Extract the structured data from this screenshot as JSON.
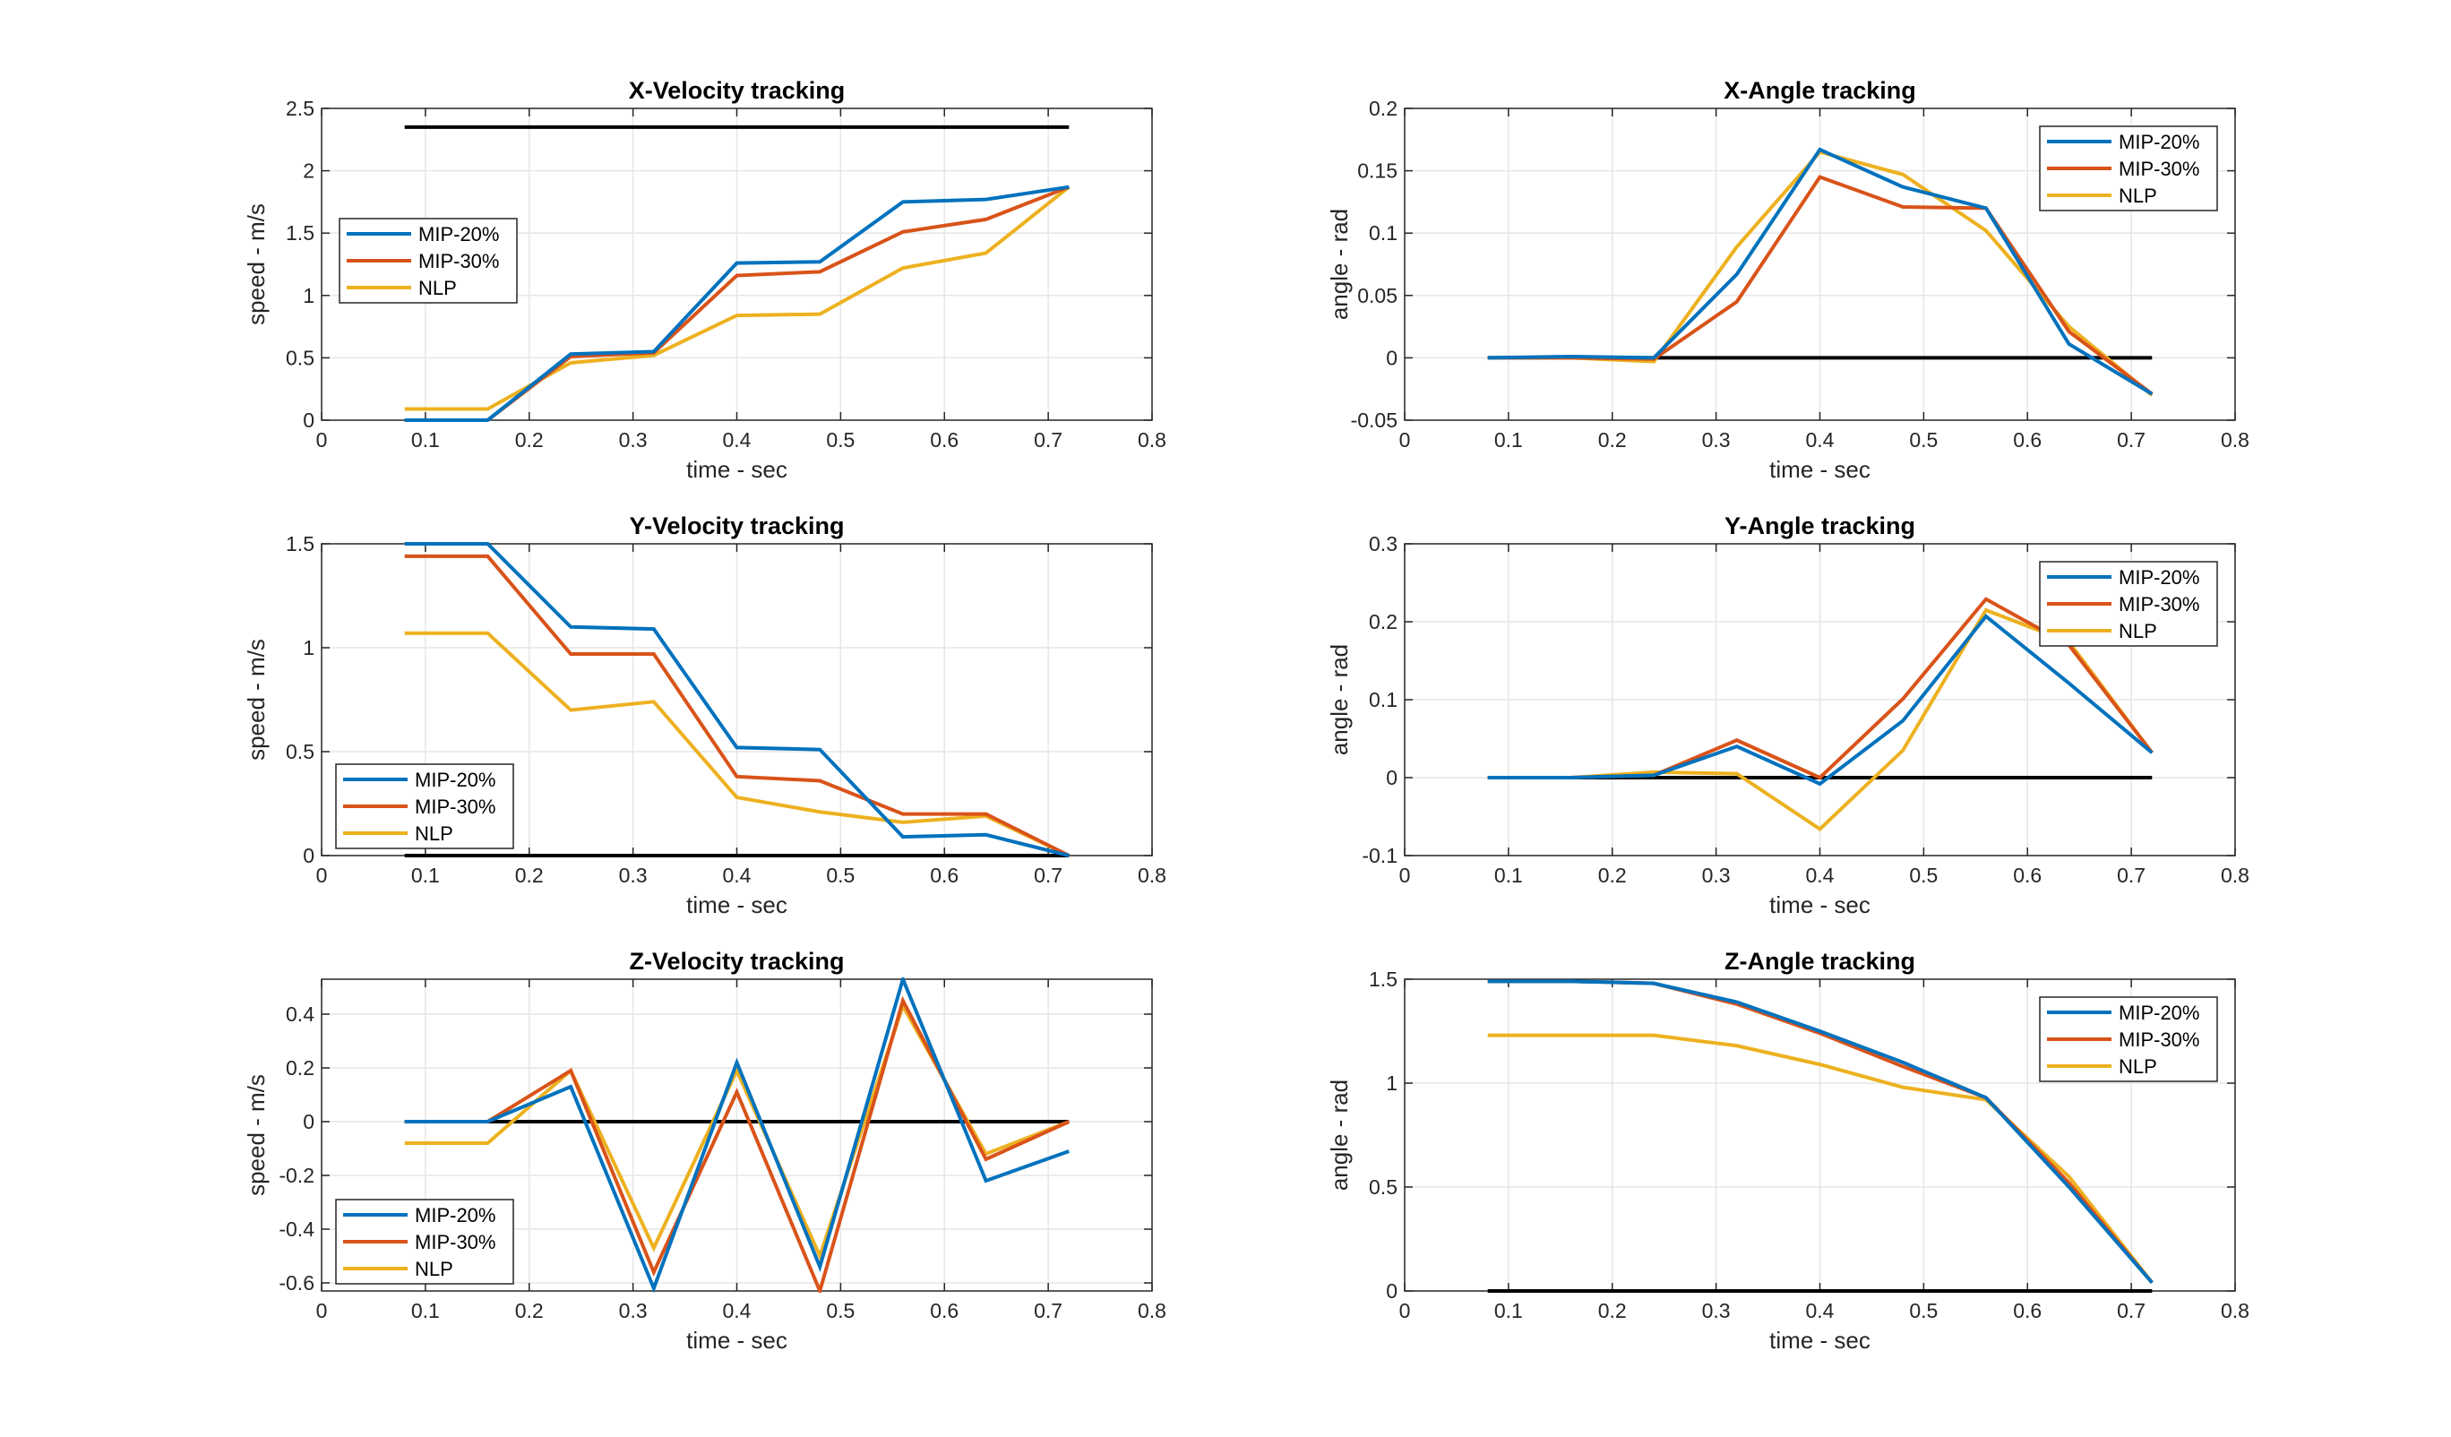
{
  "figure": {
    "colors": {
      "MIP-20%": "#0072BD",
      "MIP-30%": "#D95319",
      "NLP": "#EDB120",
      "reference": "#000000",
      "grid": "#e6e6e6",
      "axis": "#262626"
    }
  },
  "chart_data": [
    {
      "type": "line",
      "title": "X-Velocity tracking",
      "xlabel": "time - sec",
      "ylabel": "speed - m/s",
      "xlim": [
        0,
        0.8
      ],
      "ylim": [
        0,
        2.5
      ],
      "xticks": [
        "0",
        "0.1",
        "0.2",
        "0.3",
        "0.4",
        "0.5",
        "0.6",
        "0.7",
        "0.8"
      ],
      "yticks": [
        "0",
        "0.5",
        "1",
        "1.5",
        "2",
        "2.5"
      ],
      "legend_position": "middle-left",
      "x": [
        0.08,
        0.16,
        0.24,
        0.32,
        0.4,
        0.48,
        0.56,
        0.64,
        0.72
      ],
      "reference": {
        "x": [
          0.08,
          0.72
        ],
        "y": [
          2.35,
          2.35
        ]
      },
      "series": [
        {
          "name": "MIP-20%",
          "values": [
            0,
            0,
            0.53,
            0.55,
            1.26,
            1.27,
            1.75,
            1.77,
            1.87
          ]
        },
        {
          "name": "MIP-30%",
          "values": [
            0,
            0,
            0.51,
            0.54,
            1.16,
            1.19,
            1.51,
            1.61,
            1.87
          ]
        },
        {
          "name": "NLP",
          "values": [
            0.09,
            0.09,
            0.46,
            0.52,
            0.84,
            0.85,
            1.22,
            1.34,
            1.87
          ]
        }
      ]
    },
    {
      "type": "line",
      "title": "X-Angle tracking",
      "xlabel": "time - sec",
      "ylabel": "angle - rad",
      "xlim": [
        0,
        0.8
      ],
      "ylim": [
        -0.05,
        0.2
      ],
      "xticks": [
        "0",
        "0.1",
        "0.2",
        "0.3",
        "0.4",
        "0.5",
        "0.6",
        "0.7",
        "0.8"
      ],
      "yticks": [
        "-0.05",
        "0",
        "0.05",
        "0.1",
        "0.15",
        "0.2"
      ],
      "legend_position": "top-right",
      "x": [
        0.08,
        0.16,
        0.24,
        0.32,
        0.4,
        0.48,
        0.56,
        0.64,
        0.72
      ],
      "reference": {
        "x": [
          0.08,
          0.72
        ],
        "y": [
          0,
          0
        ]
      },
      "series": [
        {
          "name": "MIP-20%",
          "values": [
            0,
            0.001,
            0,
            0.067,
            0.167,
            0.137,
            0.12,
            0.011,
            -0.029
          ]
        },
        {
          "name": "MIP-30%",
          "values": [
            0,
            0,
            -0.001,
            0.045,
            0.145,
            0.121,
            0.12,
            0.021,
            -0.029
          ]
        },
        {
          "name": "NLP",
          "values": [
            0,
            0,
            -0.003,
            0.089,
            0.165,
            0.147,
            0.102,
            0.025,
            -0.03
          ]
        }
      ]
    },
    {
      "type": "line",
      "title": "Y-Velocity tracking",
      "xlabel": "time - sec",
      "ylabel": "speed - m/s",
      "xlim": [
        0,
        0.8
      ],
      "ylim": [
        0,
        1.5
      ],
      "xticks": [
        "0",
        "0.1",
        "0.2",
        "0.3",
        "0.4",
        "0.5",
        "0.6",
        "0.7",
        "0.8"
      ],
      "yticks": [
        "0",
        "0.5",
        "1",
        "1.5"
      ],
      "legend_position": "bottom-left",
      "x": [
        0.08,
        0.16,
        0.24,
        0.32,
        0.4,
        0.48,
        0.56,
        0.64,
        0.72
      ],
      "reference": {
        "x": [
          0.08,
          0.72
        ],
        "y": [
          0,
          0
        ]
      },
      "series": [
        {
          "name": "MIP-20%",
          "values": [
            1.5,
            1.5,
            1.1,
            1.09,
            0.52,
            0.51,
            0.09,
            0.1,
            0
          ]
        },
        {
          "name": "MIP-30%",
          "values": [
            1.44,
            1.44,
            0.97,
            0.97,
            0.38,
            0.36,
            0.2,
            0.2,
            0
          ]
        },
        {
          "name": "NLP",
          "values": [
            1.07,
            1.07,
            0.7,
            0.74,
            0.28,
            0.21,
            0.16,
            0.19,
            0
          ]
        }
      ]
    },
    {
      "type": "line",
      "title": "Y-Angle tracking",
      "xlabel": "time - sec",
      "ylabel": "angle - rad",
      "xlim": [
        0,
        0.8
      ],
      "ylim": [
        -0.1,
        0.3
      ],
      "xticks": [
        "0",
        "0.1",
        "0.2",
        "0.3",
        "0.4",
        "0.5",
        "0.6",
        "0.7",
        "0.8"
      ],
      "yticks": [
        "-0.1",
        "0",
        "0.1",
        "0.2",
        "0.3"
      ],
      "legend_position": "top-right",
      "x": [
        0.08,
        0.16,
        0.24,
        0.32,
        0.4,
        0.48,
        0.56,
        0.64,
        0.72
      ],
      "reference": {
        "x": [
          0.08,
          0.72
        ],
        "y": [
          0,
          0
        ]
      },
      "series": [
        {
          "name": "MIP-20%",
          "values": [
            0,
            0,
            0.003,
            0.04,
            -0.008,
            0.073,
            0.207,
            0.121,
            0.032
          ]
        },
        {
          "name": "MIP-30%",
          "values": [
            0,
            0,
            0.003,
            0.048,
            0,
            0.101,
            0.229,
            0.17,
            0.032
          ]
        },
        {
          "name": "NLP",
          "values": [
            0,
            0,
            0.007,
            0.005,
            -0.066,
            0.035,
            0.215,
            0.174,
            0.032
          ]
        }
      ]
    },
    {
      "type": "line",
      "title": "Z-Velocity tracking",
      "xlabel": "time - sec",
      "ylabel": "speed - m/s",
      "xlim": [
        0,
        0.8
      ],
      "ylim": [
        -0.63,
        0.53
      ],
      "xticks": [
        "0",
        "0.1",
        "0.2",
        "0.3",
        "0.4",
        "0.5",
        "0.6",
        "0.7",
        "0.8"
      ],
      "yticks": [
        "-0.6",
        "-0.4",
        "-0.2",
        "0",
        "0.2",
        "0.4"
      ],
      "legend_position": "bottom-left",
      "x": [
        0.08,
        0.16,
        0.24,
        0.32,
        0.4,
        0.48,
        0.56,
        0.64,
        0.72
      ],
      "reference": {
        "x": [
          0.08,
          0.72
        ],
        "y": [
          0,
          0
        ]
      },
      "series": [
        {
          "name": "MIP-20%",
          "values": [
            0,
            0,
            0.13,
            -0.62,
            0.22,
            -0.54,
            0.53,
            -0.22,
            -0.11
          ]
        },
        {
          "name": "MIP-30%",
          "values": [
            0,
            0,
            0.19,
            -0.56,
            0.11,
            -0.63,
            0.45,
            -0.14,
            0
          ]
        },
        {
          "name": "NLP",
          "values": [
            -0.08,
            -0.08,
            0.19,
            -0.47,
            0.19,
            -0.5,
            0.43,
            -0.12,
            0
          ]
        }
      ]
    },
    {
      "type": "line",
      "title": "Z-Angle tracking",
      "xlabel": "time - sec",
      "ylabel": "angle - rad",
      "xlim": [
        0,
        0.8
      ],
      "ylim": [
        0,
        1.5
      ],
      "xticks": [
        "0",
        "0.1",
        "0.2",
        "0.3",
        "0.4",
        "0.5",
        "0.6",
        "0.7",
        "0.8"
      ],
      "yticks": [
        "0",
        "0.5",
        "1",
        "1.5"
      ],
      "legend_position": "top-right",
      "x": [
        0.08,
        0.16,
        0.24,
        0.32,
        0.4,
        0.48,
        0.56,
        0.64,
        0.72
      ],
      "reference": {
        "x": [
          0.08,
          0.72
        ],
        "y": [
          0,
          0
        ]
      },
      "series": [
        {
          "name": "MIP-20%",
          "values": [
            1.49,
            1.49,
            1.48,
            1.39,
            1.25,
            1.1,
            0.93,
            0.5,
            0.04
          ]
        },
        {
          "name": "MIP-30%",
          "values": [
            1.49,
            1.49,
            1.48,
            1.38,
            1.24,
            1.08,
            0.93,
            0.52,
            0.04
          ]
        },
        {
          "name": "NLP",
          "values": [
            1.23,
            1.23,
            1.23,
            1.18,
            1.09,
            0.98,
            0.92,
            0.55,
            0.04
          ]
        }
      ]
    }
  ]
}
